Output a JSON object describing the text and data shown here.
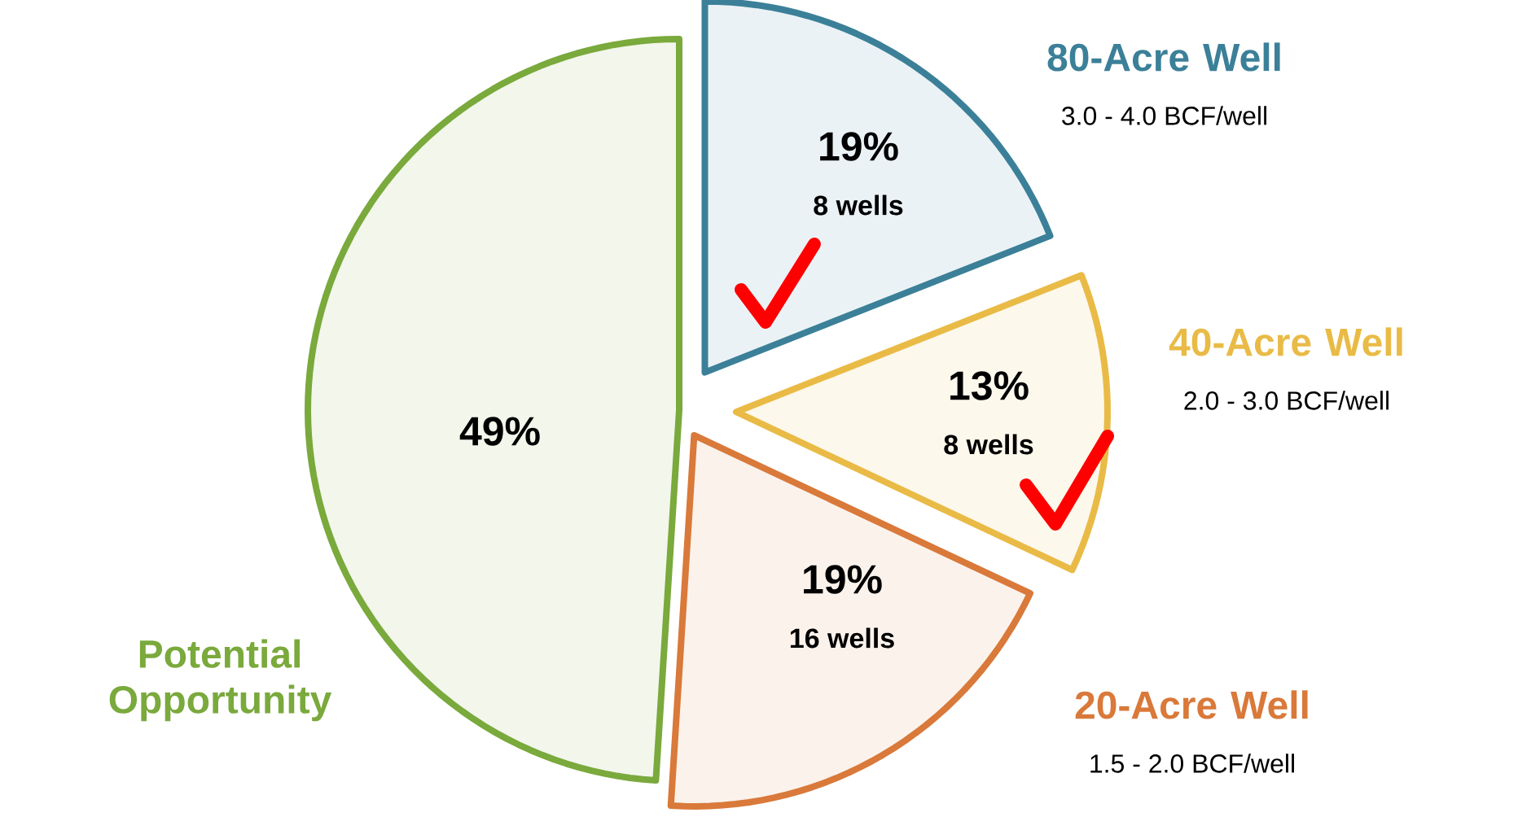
{
  "chart_data": {
    "type": "pie",
    "categories": [
      "80-Acre Well",
      "40-Acre Well",
      "20-Acre Well",
      "Potential Opportunity"
    ],
    "values": [
      19,
      13,
      19,
      49
    ],
    "colors": [
      "#3b8098",
      "#e9bb46",
      "#d9793a",
      "#7aa93c"
    ],
    "value_labels": [
      "19%",
      "13%",
      "19%",
      "49%"
    ],
    "annotations": [
      "8 wells",
      "3.0 - 4.0 BCF/well",
      "8 wells",
      "2.0 - 3.0 BCF/well",
      "16 wells",
      "1.5 - 2.0 BCF/well"
    ]
  }
}
